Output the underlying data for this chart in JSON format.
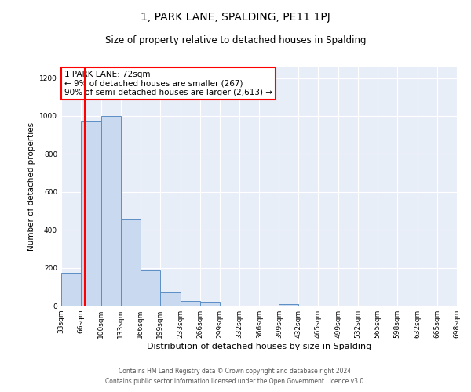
{
  "title": "1, PARK LANE, SPALDING, PE11 1PJ",
  "subtitle": "Size of property relative to detached houses in Spalding",
  "xlabel": "Distribution of detached houses by size in Spalding",
  "ylabel": "Number of detached properties",
  "bar_color": "#c9d9f0",
  "bar_edge_color": "#5b8ec5",
  "background_color": "#e8eef8",
  "bin_edges": [
    33,
    66,
    100,
    133,
    166,
    199,
    233,
    266,
    299,
    332,
    366,
    399,
    432,
    465,
    499,
    532,
    565,
    598,
    632,
    665,
    698
  ],
  "bar_heights": [
    175,
    975,
    1000,
    460,
    185,
    70,
    25,
    20,
    0,
    0,
    0,
    10,
    0,
    0,
    0,
    0,
    0,
    0,
    0,
    0
  ],
  "tick_labels": [
    "33sqm",
    "66sqm",
    "100sqm",
    "133sqm",
    "166sqm",
    "199sqm",
    "233sqm",
    "266sqm",
    "299sqm",
    "332sqm",
    "366sqm",
    "399sqm",
    "432sqm",
    "465sqm",
    "499sqm",
    "532sqm",
    "565sqm",
    "598sqm",
    "632sqm",
    "665sqm",
    "698sqm"
  ],
  "red_line_x": 72,
  "ylim": [
    0,
    1260
  ],
  "yticks": [
    0,
    200,
    400,
    600,
    800,
    1000,
    1200
  ],
  "annotation_text": "1 PARK LANE: 72sqm\n← 9% of detached houses are smaller (267)\n90% of semi-detached houses are larger (2,613) →",
  "footer1": "Contains HM Land Registry data © Crown copyright and database right 2024.",
  "footer2": "Contains public sector information licensed under the Open Government Licence v3.0."
}
